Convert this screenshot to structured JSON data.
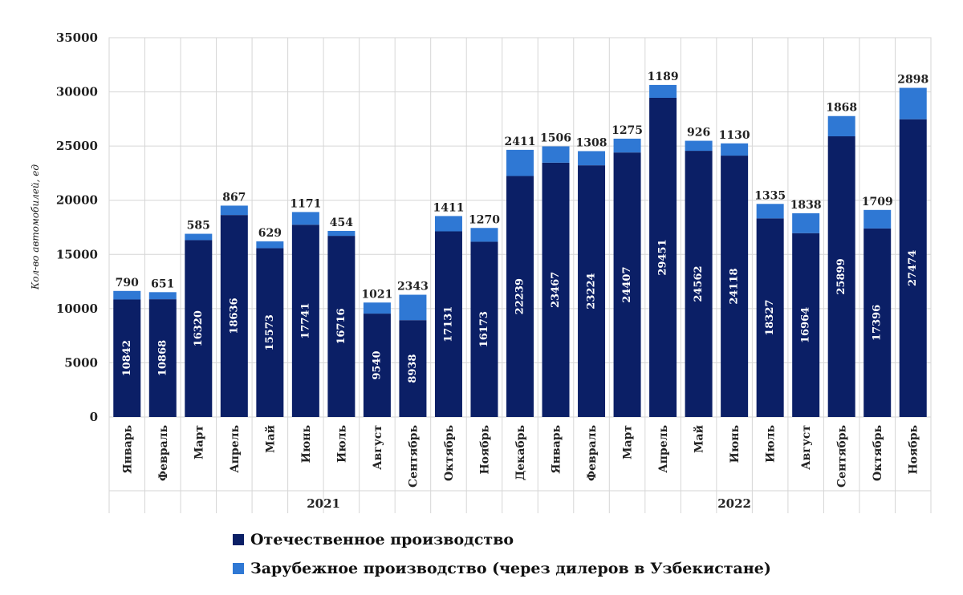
{
  "chart_data": {
    "type": "bar",
    "stacked": true,
    "title": "",
    "ylabel": "Кол-во автомобилей, ед",
    "ylim": [
      0,
      35000
    ],
    "yticks": [
      0,
      5000,
      10000,
      15000,
      20000,
      25000,
      30000,
      35000
    ],
    "grid": true,
    "legend_position": "bottom",
    "groups": [
      {
        "label": "2021",
        "count": 12
      },
      {
        "label": "2022",
        "count": 11
      }
    ],
    "categories": [
      "Январь",
      "Февраль",
      "Март",
      "Апрель",
      "Май",
      "Июнь",
      "Июль",
      "Август",
      "Сентябрь",
      "Октябрь",
      "Ноябрь",
      "Декабрь",
      "Январь",
      "Февраль",
      "Март",
      "Апрель",
      "Май",
      "Июнь",
      "Июль",
      "Август",
      "Сентябрь",
      "Октябрь",
      "Ноябрь"
    ],
    "series": [
      {
        "name": "Отечественное производство",
        "color": "#0b1f66",
        "values": [
          10842,
          10868,
          16320,
          18636,
          15573,
          17741,
          16716,
          9540,
          8938,
          17131,
          16173,
          22239,
          23467,
          23224,
          24407,
          29451,
          24562,
          24118,
          18327,
          16964,
          25899,
          17396,
          27474
        ]
      },
      {
        "name": "Зарубежное производство (через дилеров в Узбекистане)",
        "color": "#2f78d4",
        "values": [
          790,
          651,
          585,
          867,
          629,
          1171,
          454,
          1021,
          2343,
          1411,
          1270,
          2411,
          1506,
          1308,
          1275,
          1189,
          926,
          1130,
          1335,
          1838,
          1868,
          1709,
          2898
        ]
      }
    ]
  }
}
